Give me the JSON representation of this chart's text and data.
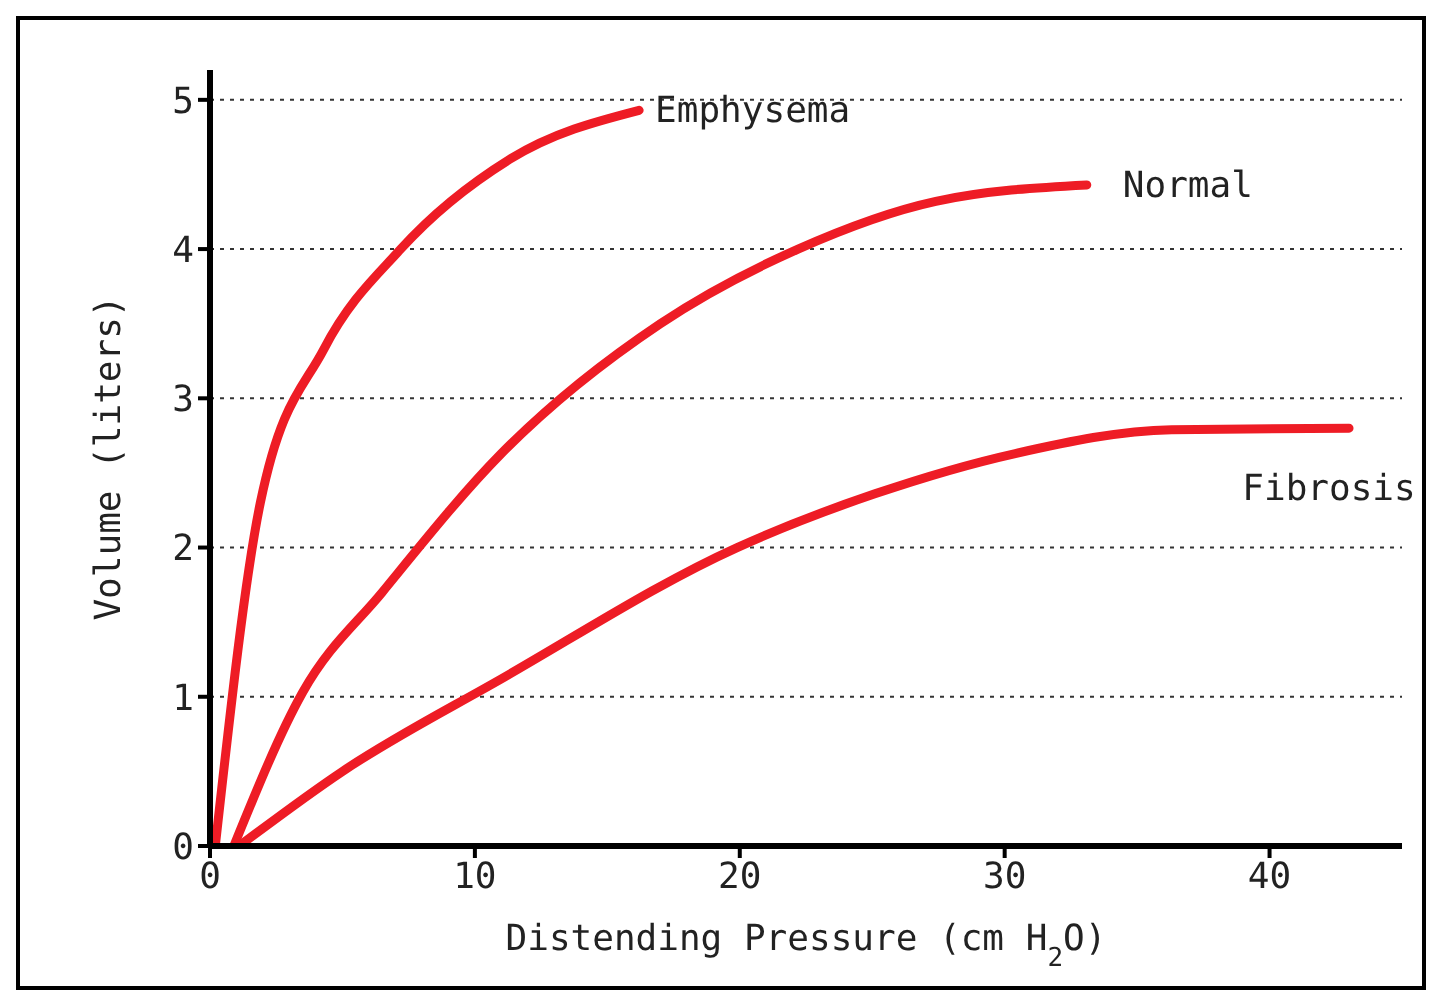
{
  "chart_data": {
    "type": "line",
    "xlabel": "Distending Pressure (cm H$_{2}$O)",
    "ylabel": "Volume (liters)",
    "xlim": [
      0,
      45
    ],
    "ylim": [
      0,
      5.2
    ],
    "xticks": [
      0,
      10,
      20,
      30,
      40
    ],
    "yticks": [
      0,
      1,
      2,
      3,
      4,
      5
    ],
    "grid": "y",
    "marker": "none",
    "line_style": "solid",
    "series": [
      {
        "name": "Emphysema",
        "color": "#ee1c25",
        "x": [
          0.2,
          1.9,
          4.3,
          7.2,
          11.3,
          16.2
        ],
        "values": [
          0,
          2.3,
          3.33,
          4.0,
          4.6,
          4.93
        ]
      },
      {
        "name": "Normal",
        "color": "#ee1c25",
        "x": [
          0.9,
          3.5,
          6.5,
          11,
          17,
          22.2,
          27.4,
          33.1
        ],
        "values": [
          0,
          1.03,
          1.7,
          2.63,
          3.5,
          4.0,
          4.32,
          4.43
        ]
      },
      {
        "name": "Fibrosis",
        "color": "#ee1c25",
        "x": [
          1.1,
          5,
          11,
          19.9,
          25.1,
          30.4,
          36.3,
          43
        ],
        "values": [
          0,
          0.5,
          1.12,
          2.0,
          2.36,
          2.63,
          2.79,
          2.8
        ]
      }
    ]
  }
}
